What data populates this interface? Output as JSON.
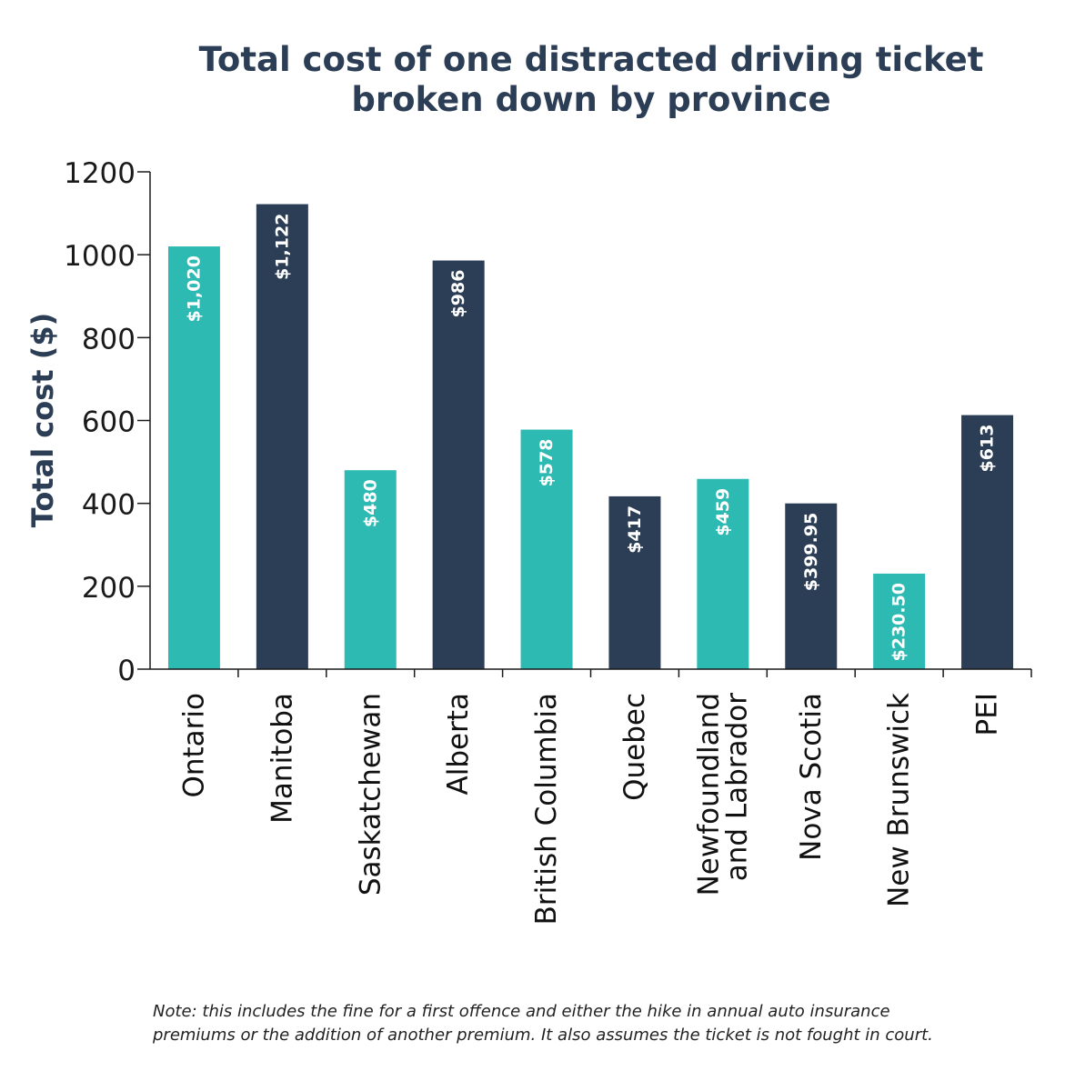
{
  "chart_data": {
    "type": "bar",
    "title_lines": [
      "Total cost of one distracted driving ticket",
      "broken down by province"
    ],
    "xlabel": "",
    "ylabel": "Total cost ($)",
    "ylim": [
      0,
      1200
    ],
    "yticks": [
      0,
      200,
      400,
      600,
      800,
      1000,
      1200
    ],
    "categories": [
      [
        "Ontario"
      ],
      [
        "Manitoba"
      ],
      [
        "Saskatchewan"
      ],
      [
        "Alberta"
      ],
      [
        "British Columbia"
      ],
      [
        "Quebec"
      ],
      [
        "Newfoundland",
        "and Labrador"
      ],
      [
        "Nova Scotia"
      ],
      [
        "New Brunswick"
      ],
      [
        "PEI"
      ]
    ],
    "values": [
      1020,
      1122,
      480,
      986,
      578,
      417,
      459,
      399.95,
      230.5,
      613
    ],
    "data_labels": [
      "$1,020",
      "$1,122",
      "$480",
      "$986",
      "$578",
      "$417",
      "$459",
      "$399.95",
      "$230.50",
      "$613"
    ],
    "bar_colors": [
      "#2dbab2",
      "#2c3e55",
      "#2dbab2",
      "#2c3e55",
      "#2dbab2",
      "#2c3e55",
      "#2dbab2",
      "#2c3e55",
      "#2dbab2",
      "#2c3e55"
    ],
    "grid": false,
    "legend": "none"
  },
  "note_lines": [
    "Note: this includes the fine for a first offence and either the hike in annual auto insurance",
    "premiums or the addition of another premium. It also assumes the ticket is not fought in court."
  ],
  "colors": {
    "teal": "#2dbab2",
    "navy": "#2c3e55",
    "axis": "#1a1a1a",
    "label_text": "#ffffff"
  }
}
